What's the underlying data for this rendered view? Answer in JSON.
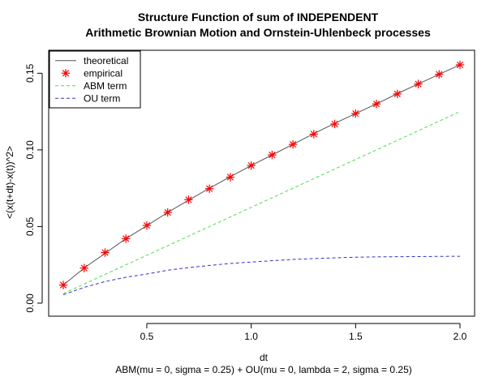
{
  "chart_data": {
    "type": "line",
    "title": "Structure Function of sum of INDEPENDENT",
    "subtitle": "Arithmetic Brownian Motion and Ornstein-Uhlenbeck processes",
    "xlabel": "dt",
    "xlabel_sub": "ABM(mu = 0, sigma = 0.25) + OU(mu = 0, lambda = 2, sigma = 0.25)",
    "ylabel": "<(x(t+dt)-x(t))^2>",
    "xlim": [
      0.03,
      2.07
    ],
    "ylim": [
      -0.0085,
      0.165
    ],
    "x_ticks": [
      0.5,
      1.0,
      1.5,
      2.0
    ],
    "x_tick_labels": [
      "0.5",
      "1.0",
      "1.5",
      "2.0"
    ],
    "y_ticks": [
      0.0,
      0.05,
      0.1,
      0.15
    ],
    "y_tick_labels": [
      "0.00",
      "0.05",
      "0.10",
      "0.15"
    ],
    "grid": false,
    "legend_position": "top-left",
    "x": [
      0.1,
      0.2,
      0.3,
      0.4,
      0.5,
      0.6,
      0.7,
      0.8,
      0.9,
      1.0,
      1.1,
      1.2,
      1.3,
      1.4,
      1.5,
      1.6,
      1.7,
      1.8,
      1.9,
      2.0
    ],
    "series": [
      {
        "name": "theoretical",
        "style": "solid",
        "color": "#555555",
        "marker": "none",
        "values": [
          0.0118,
          0.0229,
          0.0325,
          0.0421,
          0.0505,
          0.0592,
          0.0672,
          0.075,
          0.0825,
          0.0898,
          0.0967,
          0.1036,
          0.1106,
          0.1173,
          0.1237,
          0.13,
          0.1367,
          0.143,
          0.1493,
          0.1555
        ]
      },
      {
        "name": "empirical",
        "style": "points",
        "color": "#ff0000",
        "marker": "star",
        "values": [
          0.0118,
          0.0229,
          0.033,
          0.0421,
          0.0507,
          0.0592,
          0.0675,
          0.0747,
          0.0822,
          0.0898,
          0.0967,
          0.1036,
          0.1103,
          0.1169,
          0.1237,
          0.13,
          0.1365,
          0.143,
          0.1493,
          0.1555
        ]
      },
      {
        "name": "ABM term",
        "style": "dashed",
        "color": "#4ddd4d",
        "marker": "none",
        "values": [
          0.00625,
          0.0125,
          0.01875,
          0.025,
          0.03125,
          0.0375,
          0.04375,
          0.05,
          0.05625,
          0.0625,
          0.06875,
          0.075,
          0.08125,
          0.0875,
          0.09375,
          0.1,
          0.10625,
          0.1125,
          0.11875,
          0.125
        ]
      },
      {
        "name": "OU term",
        "style": "dashed",
        "color": "#3333cc",
        "marker": "none",
        "values": [
          0.0055,
          0.0103,
          0.0141,
          0.0169,
          0.019,
          0.0215,
          0.0232,
          0.0246,
          0.0259,
          0.0268,
          0.0277,
          0.0285,
          0.0291,
          0.0296,
          0.03,
          0.0302,
          0.0303,
          0.0304,
          0.0305,
          0.0306
        ]
      }
    ]
  }
}
